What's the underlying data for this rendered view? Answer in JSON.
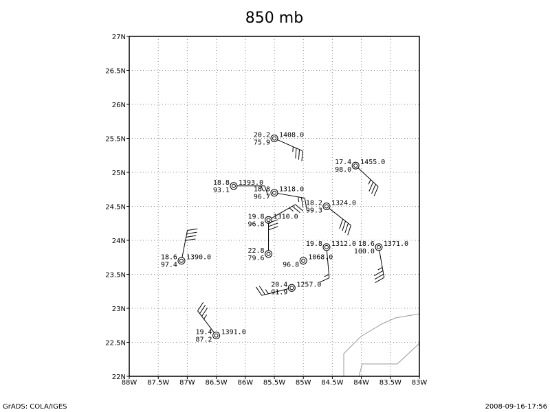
{
  "chart_data": {
    "type": "station",
    "title": "850 mb",
    "xlim": [
      -88,
      -83
    ],
    "ylim": [
      22,
      27
    ],
    "xticks": [
      {
        "value": -88,
        "label": "88W"
      },
      {
        "value": -87.5,
        "label": "87.5W"
      },
      {
        "value": -87,
        "label": "87W"
      },
      {
        "value": -86.5,
        "label": "86.5W"
      },
      {
        "value": -86,
        "label": "86W"
      },
      {
        "value": -85.5,
        "label": "85.5W"
      },
      {
        "value": -85,
        "label": "85W"
      },
      {
        "value": -84.5,
        "label": "84.5W"
      },
      {
        "value": -84,
        "label": "84W"
      },
      {
        "value": -83.5,
        "label": "83.5W"
      },
      {
        "value": -83,
        "label": "83W"
      }
    ],
    "yticks": [
      {
        "value": 22,
        "label": "22N"
      },
      {
        "value": 22.5,
        "label": "22.5N"
      },
      {
        "value": 23,
        "label": "23N"
      },
      {
        "value": 23.5,
        "label": "23.5N"
      },
      {
        "value": 24,
        "label": "24N"
      },
      {
        "value": 24.5,
        "label": "24.5N"
      },
      {
        "value": 25,
        "label": "25N"
      },
      {
        "value": 25.5,
        "label": "25.5N"
      },
      {
        "value": 26,
        "label": "26N"
      },
      {
        "value": 26.5,
        "label": "26.5N"
      },
      {
        "value": 27,
        "label": "27N"
      }
    ],
    "grid": true,
    "color": "#000000",
    "stations": [
      {
        "lon": -85.5,
        "lat": 25.5,
        "temp": "20.2",
        "rh": "75.9",
        "height": "1408.0",
        "wind_dir": 114,
        "wind_speed": 35
      },
      {
        "lon": -84.1,
        "lat": 25.1,
        "temp": "17.4",
        "rh": "98.0",
        "height": "1455.0",
        "wind_dir": 133,
        "wind_speed": 35
      },
      {
        "lon": -86.2,
        "lat": 24.8,
        "temp": "18.8",
        "rh": "93.1",
        "height": "1393.0",
        "wind_dir": 90,
        "wind_speed": 15
      },
      {
        "lon": -85.5,
        "lat": 24.7,
        "temp": "18.8",
        "rh": "96.7",
        "height": "1318.0",
        "wind_dir": 100,
        "wind_speed": 25
      },
      {
        "lon": -84.6,
        "lat": 24.5,
        "temp": "18.2",
        "rh": "99.3",
        "height": "1324.0",
        "wind_dir": 128,
        "wind_speed": 40
      },
      {
        "lon": -85.6,
        "lat": 24.3,
        "temp": "19.8",
        "rh": "96.8",
        "height": "1310.0",
        "wind_dir": 60,
        "wind_speed": 25
      },
      {
        "lon": -84.6,
        "lat": 23.9,
        "temp": "19.8",
        "rh": null,
        "height": "1312.0",
        "wind_dir": 175,
        "wind_speed": 15
      },
      {
        "lon": -83.7,
        "lat": 23.9,
        "temp": "18.6",
        "rh": "100.0",
        "height": "1371.0",
        "wind_dir": 170,
        "wind_speed": 35
      },
      {
        "lon": -87.1,
        "lat": 23.7,
        "temp": "18.6",
        "rh": "97.4",
        "height": "1390.0",
        "wind_dir": 11,
        "wind_speed": 40
      },
      {
        "lon": -85.6,
        "lat": 23.8,
        "temp": "22.8",
        "rh": "79.6",
        "height": null,
        "wind_dir": 0,
        "wind_speed": 30
      },
      {
        "lon": -85.0,
        "lat": 23.7,
        "temp": null,
        "rh": "96.8",
        "height": "1068.0",
        "wind_dir": null,
        "wind_speed": null
      },
      {
        "lon": -85.2,
        "lat": 23.3,
        "temp": "20.4",
        "rh": "91.9",
        "height": "1257.0",
        "wind_dir": 256,
        "wind_speed": 25
      },
      {
        "lon": -86.5,
        "lat": 22.6,
        "temp": "19.4",
        "rh": "87.2",
        "height": "1391.0",
        "wind_dir": 323,
        "wind_speed": 35
      }
    ]
  },
  "footer": {
    "left": "GrADS: COLA/IGES",
    "right": "2008-09-16-17:56"
  }
}
